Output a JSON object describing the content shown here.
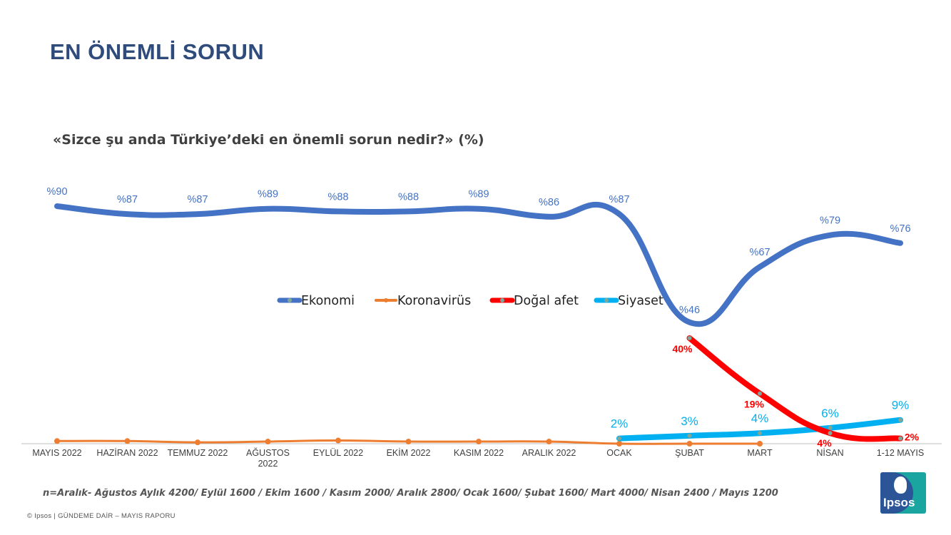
{
  "header": {
    "title": "EN ÖNEMLİ SORUN",
    "subtitle": "«Sizce şu anda Türkiye’deki en önemli sorun nedir?» (%)"
  },
  "footer": {
    "note": "n=Aralık- Ağustos Aylık 4200/ Eylül 1600 / Ekim 1600 / Kasım 2000/ Aralık 2800/ Ocak 1600/ Şubat 1600/ Mart 4000/ Nisan 2400 / Mayıs 1200",
    "copyright": "© Ipsos | GÜNDEME DAİR – MAYIS RAPORU",
    "logo_text": "Ipsos"
  },
  "colors": {
    "ekonomi": "#4472c4",
    "koronavirus": "#ed7d31",
    "dogal_afet": "#ff0000",
    "siyaset": "#00b0f0",
    "title": "#2f4b7c"
  },
  "chart_data": {
    "type": "line",
    "categories": [
      "MAYIS 2022",
      "HAZİRAN 2022",
      "TEMMUZ 2022",
      "AĞUSTOS 2022",
      "EYLÜL 2022",
      "EKİM 2022",
      "KASIM 2022",
      "ARALIK 2022",
      "OCAK",
      "ŞUBAT",
      "MART",
      "NİSAN",
      "1-12 MAYIS"
    ],
    "ylim": [
      0,
      100
    ],
    "legend_position": "center",
    "series": [
      {
        "name": "Ekonomi",
        "values": [
          90,
          87,
          87,
          89,
          88,
          88,
          89,
          86,
          87,
          46,
          67,
          79,
          76
        ],
        "labels": [
          "%90",
          "%87",
          "%87",
          "%89",
          "%88",
          "%88",
          "%89",
          "%86",
          "%87",
          "%46",
          "%67",
          "%79",
          "%76"
        ]
      },
      {
        "name": "Koronavirüs",
        "values": [
          1,
          1,
          0.5,
          0.8,
          1.2,
          0.8,
          0.8,
          0.8,
          0,
          0,
          0,
          null,
          null
        ],
        "labels": []
      },
      {
        "name": "Doğal afet",
        "values": [
          null,
          null,
          null,
          null,
          null,
          null,
          null,
          null,
          null,
          40,
          19,
          4,
          2
        ],
        "labels": [
          null,
          null,
          null,
          null,
          null,
          null,
          null,
          null,
          null,
          "40%",
          "19%",
          "4%",
          "2%"
        ]
      },
      {
        "name": "Siyaset",
        "values": [
          null,
          null,
          null,
          null,
          null,
          null,
          null,
          null,
          2,
          3,
          4,
          6,
          9
        ],
        "labels": [
          null,
          null,
          null,
          null,
          null,
          null,
          null,
          null,
          "2%",
          "3%",
          "4%",
          "6%",
          "9%"
        ]
      }
    ]
  }
}
